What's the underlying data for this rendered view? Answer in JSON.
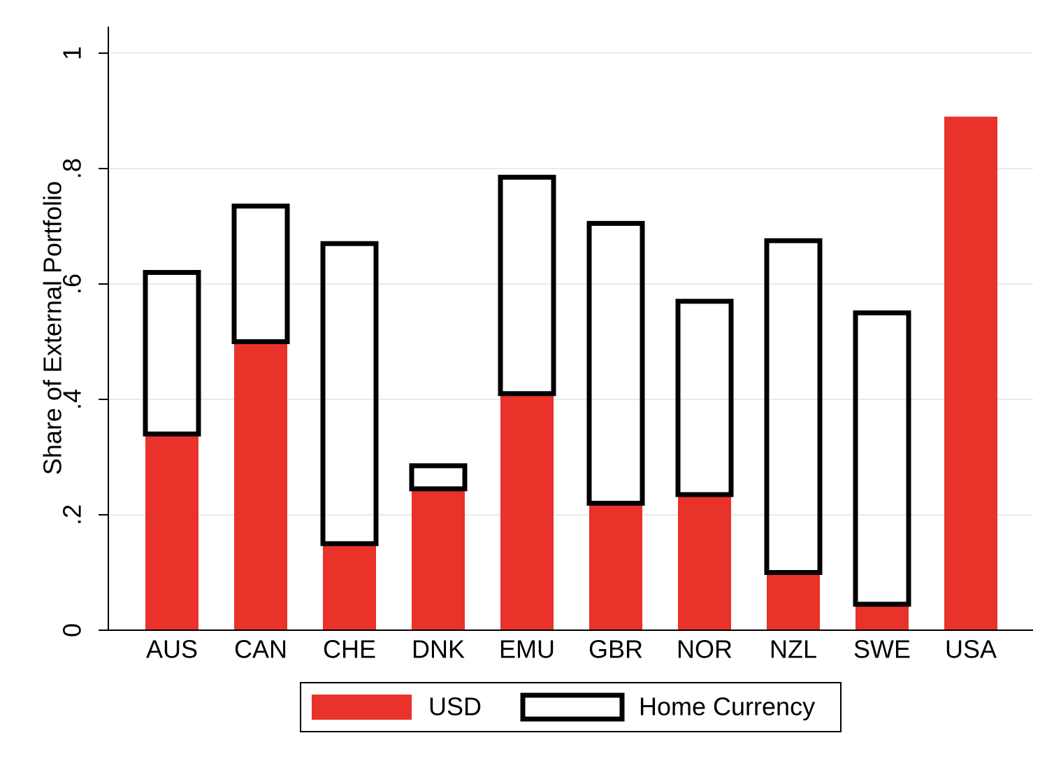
{
  "chart_data": {
    "type": "bar",
    "title": "",
    "xlabel": "",
    "ylabel": "Share of External Portfolio",
    "ylim": [
      0,
      1
    ],
    "yticks": [
      {
        "value": 0,
        "label": "0"
      },
      {
        "value": 0.2,
        "label": ".2"
      },
      {
        "value": 0.4,
        "label": ".4"
      },
      {
        "value": 0.6,
        "label": ".6"
      },
      {
        "value": 0.8,
        "label": ".8"
      },
      {
        "value": 1,
        "label": "1"
      }
    ],
    "grid": true,
    "legend_position": "bottom",
    "categories": [
      "AUS",
      "CAN",
      "CHE",
      "DNK",
      "EMU",
      "GBR",
      "NOR",
      "NZL",
      "SWE",
      "USA"
    ],
    "series": [
      {
        "name": "USD",
        "style": "filled",
        "color": "#e8322a",
        "values": [
          0.34,
          0.5,
          0.15,
          0.245,
          0.41,
          0.22,
          0.235,
          0.1,
          0.045,
          0.89
        ]
      },
      {
        "name": "Home Currency",
        "style": "outline",
        "color": "#000000",
        "values": [
          0.28,
          0.235,
          0.52,
          0.04,
          0.375,
          0.485,
          0.335,
          0.575,
          0.505,
          null
        ]
      }
    ]
  }
}
